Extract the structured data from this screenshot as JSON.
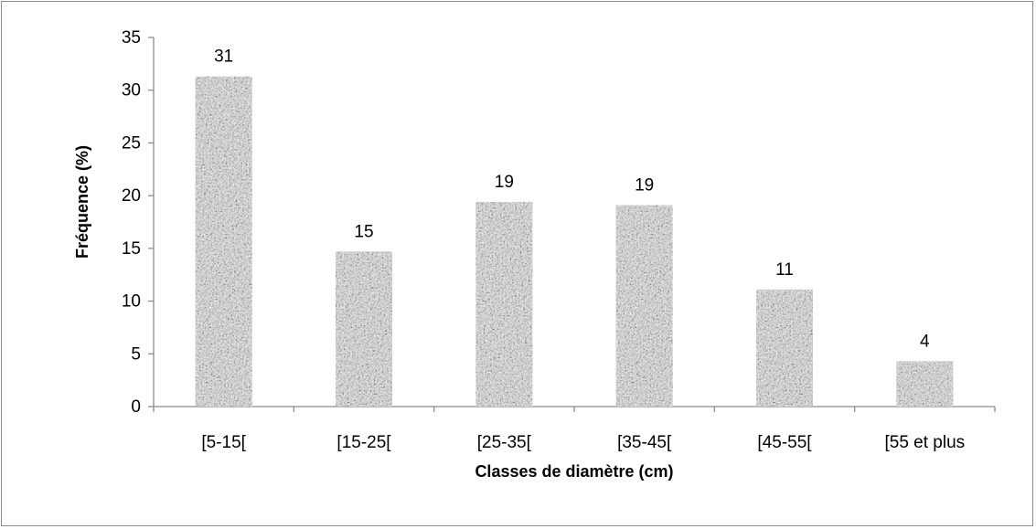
{
  "chart_data": {
    "type": "bar",
    "categories": [
      "[5-15[",
      "[15-25[",
      "[25-35[",
      "[35-45[",
      "[45-55[",
      "[55 et plus"
    ],
    "values": [
      31.3,
      14.7,
      19.4,
      19.1,
      11.1,
      4.3
    ],
    "data_labels": [
      "31",
      "15",
      "19",
      "19",
      "11",
      "4"
    ],
    "xlabel": "Classes de diamètre (cm)",
    "ylabel": "Fréquence (%)",
    "ylim": [
      0,
      35
    ],
    "yticks": [
      "0",
      "5",
      "10",
      "15",
      "20",
      "25",
      "30",
      "35"
    ],
    "grid": false,
    "legend": "none",
    "bar_fill": "granite-texture",
    "colors": {
      "bar_dark": "#5a5a5a",
      "bar_light": "#d8d8d8",
      "axis": "#8c8c8c"
    }
  }
}
